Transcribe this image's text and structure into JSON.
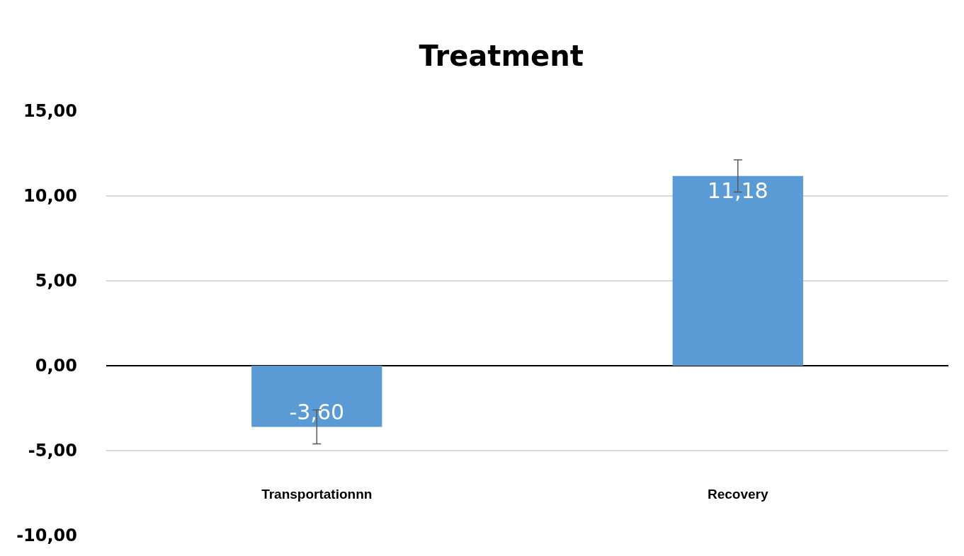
{
  "chart_data": {
    "type": "bar",
    "title": "Treatment",
    "categories": [
      "Transportationnn",
      "Recovery"
    ],
    "values": [
      -3.6,
      11.18
    ],
    "value_labels": [
      "-3,60",
      "11,18"
    ],
    "errors": [
      1.0,
      0.95
    ],
    "color": "#5b9bd5",
    "ylim": [
      -10,
      15
    ],
    "yticks": [
      {
        "value": -10,
        "label": "-10,00"
      },
      {
        "value": -5,
        "label": "-5,00"
      },
      {
        "value": 0,
        "label": "0,00"
      },
      {
        "value": 5,
        "label": "5,00"
      },
      {
        "value": 10,
        "label": "10,00"
      },
      {
        "value": 15,
        "label": "15,00"
      }
    ],
    "grid": "y",
    "legend": false
  }
}
